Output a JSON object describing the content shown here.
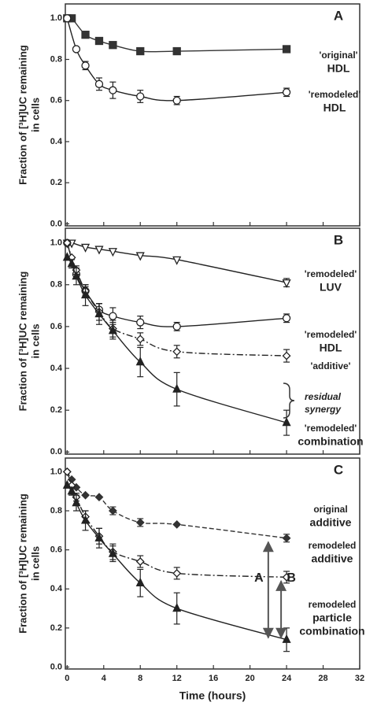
{
  "chart_data": [
    {
      "type": "line",
      "panel_label": "A",
      "ylabel": [
        "Fraction of [³H]UC remaining",
        "in cells"
      ],
      "xlim": [
        -0.2,
        32
      ],
      "xticks": [
        0,
        4,
        8,
        12,
        16,
        20,
        24,
        28,
        32
      ],
      "ylim": [
        -0.01,
        1.07
      ],
      "yticks": [
        {
          "value": 0,
          "label": "0.0"
        },
        {
          "value": 0.2,
          "label": "0.2"
        },
        {
          "value": 0.4,
          "label": "0.4"
        },
        {
          "value": 0.6,
          "label": "0.6"
        },
        {
          "value": 0.8,
          "label": "0.8"
        },
        {
          "value": 1,
          "label": "1.0"
        }
      ],
      "series": [
        {
          "label": [
            "'original'",
            "HDL"
          ],
          "color": "#333333",
          "marker": "square",
          "filled": true,
          "dash": "solid",
          "x": [
            0,
            0.5,
            2,
            3.5,
            5,
            8,
            12,
            24
          ],
          "values": [
            1.0,
            1.0,
            0.92,
            0.89,
            0.87,
            0.84,
            0.84,
            0.85
          ]
        },
        {
          "label": [
            "'remodeled'",
            "HDL"
          ],
          "color": "#222222",
          "marker": "circle",
          "filled": false,
          "dash": "solid",
          "x": [
            0,
            1,
            2,
            3.5,
            5,
            8,
            12,
            24
          ],
          "values": [
            1.0,
            0.85,
            0.77,
            0.68,
            0.65,
            0.62,
            0.6,
            0.64
          ],
          "errors": [
            0,
            0,
            0.02,
            0.03,
            0.04,
            0.03,
            0.02,
            0.02
          ]
        }
      ],
      "annotations": []
    },
    {
      "type": "line",
      "panel_label": "B",
      "ylabel": [
        "Fraction of [³H]UC remaining",
        "in cells"
      ],
      "xlim": [
        -0.2,
        32
      ],
      "xticks": [
        0,
        4,
        8,
        12,
        16,
        20,
        24,
        28,
        32
      ],
      "ylim": [
        -0.01,
        1.07
      ],
      "yticks": [
        {
          "value": 0,
          "label": "0.0"
        },
        {
          "value": 0.2,
          "label": "0.2"
        },
        {
          "value": 0.4,
          "label": "0.4"
        },
        {
          "value": 0.6,
          "label": "0.6"
        },
        {
          "value": 0.8,
          "label": "0.8"
        },
        {
          "value": 1,
          "label": "1.0"
        }
      ],
      "series": [
        {
          "label": [
            "'remodeled'",
            "LUV"
          ],
          "color": "#222222",
          "marker": "triangle-down",
          "filled": false,
          "dash": "solid",
          "x": [
            0,
            0.5,
            2,
            3.5,
            5,
            8,
            12,
            24
          ],
          "values": [
            1.0,
            1.0,
            0.98,
            0.97,
            0.96,
            0.94,
            0.92,
            0.81
          ],
          "errors": [
            0,
            0,
            0,
            0,
            0,
            0,
            0,
            0.02
          ]
        },
        {
          "label": [
            "'remodeled'",
            "HDL"
          ],
          "color": "#222222",
          "marker": "circle",
          "filled": false,
          "dash": "solid",
          "x": [
            0,
            1,
            2,
            3.5,
            5,
            8,
            12,
            24
          ],
          "values": [
            1.0,
            0.85,
            0.77,
            0.68,
            0.65,
            0.62,
            0.6,
            0.64
          ],
          "errors": [
            0,
            0,
            0.02,
            0.03,
            0.04,
            0.03,
            0.02,
            0.02
          ]
        },
        {
          "label": [
            "'additive'"
          ],
          "color": "#222222",
          "marker": "diamond",
          "filled": false,
          "dash": "dashdot",
          "x": [
            0,
            0.5,
            1,
            2,
            3.5,
            5,
            8,
            12,
            24
          ],
          "values": [
            1.0,
            0.93,
            0.87,
            0.77,
            0.67,
            0.59,
            0.54,
            0.48,
            0.46
          ],
          "errors": [
            0,
            0,
            0.02,
            0.03,
            0.04,
            0.04,
            0.03,
            0.03,
            0.03
          ]
        },
        {
          "label": [
            "'remodeled'",
            "combination"
          ],
          "color": "#222222",
          "marker": "triangle",
          "filled": true,
          "dash": "solid",
          "x": [
            0,
            0.5,
            1,
            2,
            3.5,
            5,
            8,
            12,
            24
          ],
          "values": [
            0.93,
            0.9,
            0.84,
            0.75,
            0.66,
            0.58,
            0.43,
            0.3,
            0.14
          ],
          "errors": [
            0,
            0.02,
            0.04,
            0.05,
            0.05,
            0.04,
            0.07,
            0.08,
            0.06
          ]
        }
      ],
      "annotations": [
        {
          "text": "residual"
        },
        {
          "text": "synergy"
        }
      ]
    },
    {
      "type": "line",
      "panel_label": "C",
      "ylabel": [
        "Fraction of [³H]UC remaining",
        "in cells"
      ],
      "xlabel": "Time (hours)",
      "xlim": [
        -0.2,
        32
      ],
      "xticks": [
        0,
        4,
        8,
        12,
        16,
        20,
        24,
        28,
        32
      ],
      "ylim": [
        -0.01,
        1.07
      ],
      "yticks": [
        {
          "value": 0,
          "label": "0.0"
        },
        {
          "value": 0.2,
          "label": "0.2"
        },
        {
          "value": 0.4,
          "label": "0.4"
        },
        {
          "value": 0.6,
          "label": "0.6"
        },
        {
          "value": 0.8,
          "label": "0.8"
        },
        {
          "value": 1,
          "label": "1.0"
        }
      ],
      "series": [
        {
          "label": [
            "original",
            "additive"
          ],
          "color": "#333333",
          "marker": "diamond",
          "filled": true,
          "dash": "dashed",
          "x": [
            0,
            0.5,
            1,
            2,
            3.5,
            5,
            8,
            12,
            24
          ],
          "values": [
            1.0,
            0.96,
            0.92,
            0.88,
            0.87,
            0.8,
            0.74,
            0.73,
            0.66
          ],
          "errors": [
            0,
            0,
            0,
            0,
            0,
            0.02,
            0.02,
            0,
            0.02
          ]
        },
        {
          "label": [
            "remodeled",
            "additive"
          ],
          "color": "#222222",
          "marker": "diamond",
          "filled": false,
          "dash": "dashdot",
          "x": [
            0,
            0.5,
            1,
            2,
            3.5,
            5,
            8,
            12,
            24
          ],
          "values": [
            1.0,
            0.93,
            0.87,
            0.77,
            0.67,
            0.59,
            0.54,
            0.48,
            0.46
          ],
          "errors": [
            0,
            0,
            0.02,
            0.03,
            0.04,
            0.04,
            0.03,
            0.03,
            0.03
          ]
        },
        {
          "label": [
            "remodeled",
            "particle",
            "combination"
          ],
          "color": "#222222",
          "marker": "triangle",
          "filled": true,
          "dash": "solid",
          "x": [
            0,
            0.5,
            1,
            2,
            3.5,
            5,
            8,
            12,
            24
          ],
          "values": [
            0.93,
            0.9,
            0.84,
            0.75,
            0.66,
            0.58,
            0.43,
            0.3,
            0.14
          ],
          "errors": [
            0,
            0.02,
            0.04,
            0.05,
            0.05,
            0.04,
            0.07,
            0.08,
            0.06
          ]
        }
      ],
      "annotations": [
        {
          "text": "A"
        },
        {
          "text": "B"
        }
      ]
    }
  ]
}
